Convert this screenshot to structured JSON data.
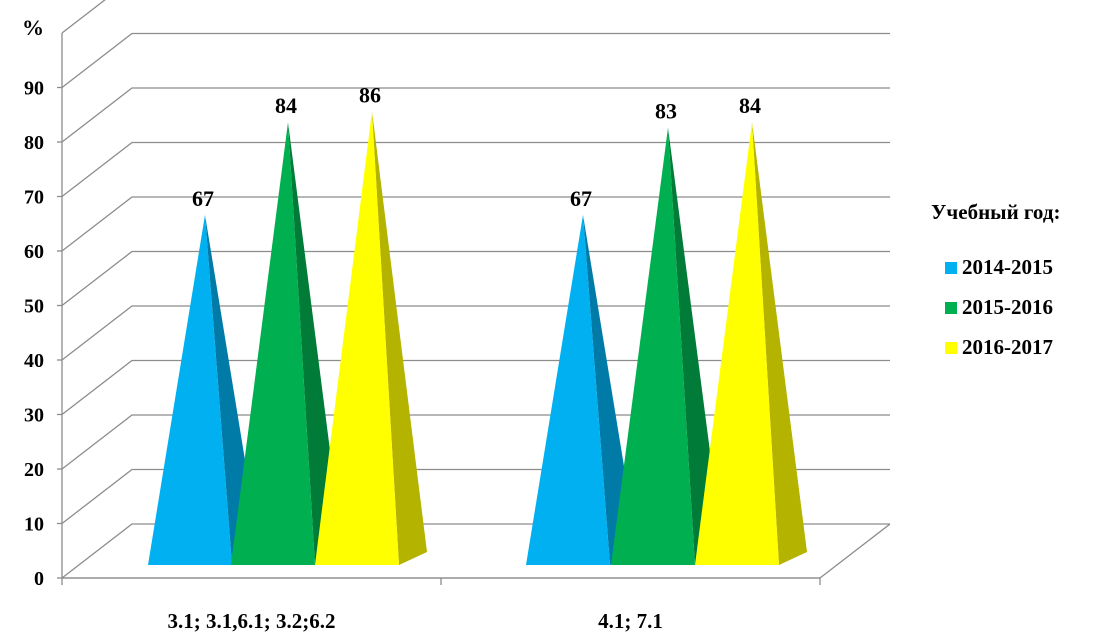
{
  "chart_data": {
    "type": "bar",
    "bar_shape": "pyramid-3d",
    "y_axis_unit": "%",
    "categories": [
      "3.1; 3.1,6.1; 3.2;6.2",
      "4.1; 7.1"
    ],
    "legend_title": "Учебный год:",
    "series": [
      {
        "name": "2014-2015",
        "values": [
          67,
          67
        ],
        "color": "#00b0f0"
      },
      {
        "name": "2015-2016",
        "values": [
          84,
          83
        ],
        "color": "#00b050"
      },
      {
        "name": "2016-2017",
        "values": [
          86,
          84
        ],
        "color": "#ffff00"
      }
    ],
    "ylim": [
      0,
      100
    ],
    "y_ticks": [
      0,
      10,
      20,
      30,
      40,
      50,
      60,
      70,
      80,
      90
    ],
    "grid": true,
    "legend_position": "right"
  }
}
